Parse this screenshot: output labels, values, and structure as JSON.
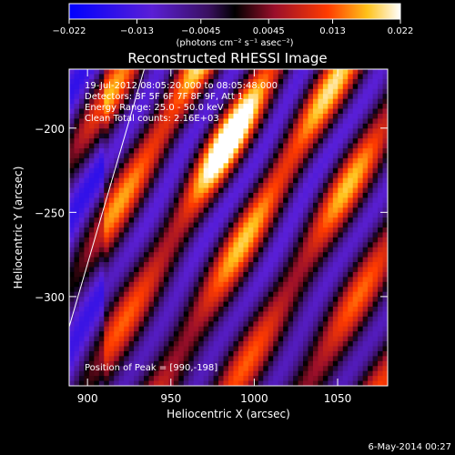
{
  "chart_data": {
    "type": "heatmap",
    "title": "Reconstructed RHESSI Image",
    "xlabel": "Heliocentric X (arcsec)",
    "ylabel": "Heliocentric Y (arcsec)",
    "xlim": [
      889,
      1080
    ],
    "ylim": [
      -353,
      -165
    ],
    "x_ticks": [
      900,
      950,
      1000,
      1050
    ],
    "x_tick_labels": [
      "900",
      "950",
      "1000",
      "1050"
    ],
    "y_ticks": [
      -300,
      -250,
      -200
    ],
    "y_tick_labels": [
      "−300",
      "−250",
      "−200"
    ],
    "colorbar": {
      "range": [
        -0.022,
        0.022
      ],
      "colormap": "blue-purple-red-yellow-white",
      "ticks": [
        -0.022,
        -0.013,
        -0.0045,
        0.0045,
        0.013,
        0.022
      ],
      "tick_labels": [
        "−0.022",
        "−0.013",
        "−0.0045",
        "0.0045",
        "0.013",
        "0.022"
      ],
      "unit_text": "(photons cm⁻² s⁻¹ asec⁻²)"
    },
    "annotations": [
      "19-Jul-2012 08:05:20.000 to 08:05:48.000",
      "Detectors: 3F 5F 6F 7F 8F 9F, Att 1",
      "Energy Range: 25.0 - 50.0 keV",
      "Clean    Total counts: 2.16E+03"
    ],
    "peak": {
      "label": "Position of Peak = [990,-198]",
      "x": 990,
      "y": -198
    },
    "limb_line": [
      [
        889,
        -318
      ],
      [
        934,
        -165
      ]
    ],
    "grid": false
  },
  "footer": {
    "timestamp": "6-May-2014 00:27"
  }
}
